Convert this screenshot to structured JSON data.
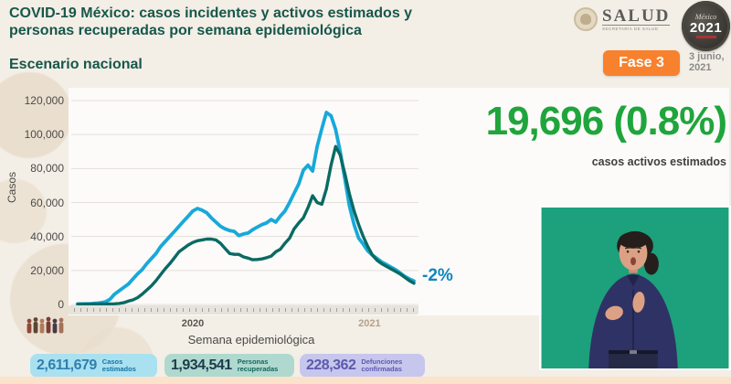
{
  "colors": {
    "title_green": "#17574a",
    "accent_green": "#1fa53c",
    "line_blue": "#17a9d9",
    "line_teal": "#0a6a63",
    "badge_orange": "#f8812e",
    "annotation_blue": "#0d87bd",
    "video_background": "#1da07c",
    "grid": "#e3dfda",
    "year_2020": "#5a564f",
    "year_2021": "#b3a28c"
  },
  "header": {
    "title_line1": "COVID-19 México: casos incidentes y activos estimados y",
    "title_line2": "personas recuperadas por semana epidemiológica",
    "subtitle": "Escenario nacional",
    "phase_badge": "Fase 3",
    "date_line1": "3 junio,",
    "date_line2": "2021",
    "salud_logo": {
      "title": "SALUD",
      "subtitle": "SECRETARÍA DE SALUD"
    },
    "mexico_badge": {
      "script": "México",
      "year": "2021"
    }
  },
  "kpi": {
    "value": "19,696 (0.8%)",
    "label": "casos activos estimados"
  },
  "chart_data": {
    "type": "line",
    "title": "Casos incidentes y activos estimados y personas recuperadas por semana epidemiológica",
    "xlabel": "Semana epidemiológica",
    "ylabel": "Casos",
    "ylim": [
      0,
      120000
    ],
    "grid": true,
    "legend": "none",
    "x_weeks_range": "2020 semana 1 a 2021 semana 22",
    "y_ticks": [
      {
        "value": 120000,
        "label": "120,000"
      },
      {
        "value": 100000,
        "label": "100,000"
      },
      {
        "value": 80000,
        "label": "80,000"
      },
      {
        "value": 60000,
        "label": "60,000"
      },
      {
        "value": 40000,
        "label": "40,000"
      },
      {
        "value": 20000,
        "label": "20,000"
      },
      {
        "value": 0,
        "label": "0"
      }
    ],
    "x_ticks": [
      {
        "label": "2020",
        "pos": 0.355,
        "color": "#5a564f"
      },
      {
        "label": "2021",
        "pos": 0.86,
        "color": "#b3a28c"
      }
    ],
    "series": [
      {
        "name": "Casos incidentes estimados",
        "color": "#17a9d9",
        "values": [
          300,
          300,
          400,
          500,
          700,
          1000,
          1500,
          3000,
          6000,
          8000,
          10000,
          12000,
          15000,
          18000,
          20500,
          24000,
          27000,
          30000,
          34000,
          37000,
          40000,
          43000,
          46000,
          49000,
          52000,
          55000,
          56500,
          55500,
          54000,
          51000,
          48500,
          46000,
          44500,
          43500,
          43000,
          40500,
          41500,
          42000,
          44000,
          45500,
          47000,
          48000,
          50000,
          48500,
          52000,
          55000,
          60000,
          65500,
          71000,
          79000,
          82000,
          78500,
          93000,
          103500,
          113000,
          111000,
          103000,
          90000,
          74000,
          58000,
          47000,
          39000,
          35500,
          31500,
          29000,
          27000,
          25000,
          23500,
          22000,
          20500,
          18500,
          16500,
          15000,
          13800
        ]
      },
      {
        "name": "Personas recuperadas",
        "color": "#0a6a63",
        "values": [
          100,
          100,
          150,
          200,
          200,
          250,
          300,
          300,
          400,
          600,
          1000,
          2000,
          2700,
          4000,
          6000,
          8500,
          11000,
          14000,
          17500,
          21000,
          24000,
          27500,
          31000,
          33000,
          35000,
          36500,
          37500,
          38000,
          38500,
          38500,
          38000,
          36000,
          33000,
          30000,
          29500,
          29500,
          28000,
          27300,
          26300,
          26500,
          26800,
          27500,
          28400,
          31000,
          32500,
          36000,
          39000,
          44500,
          48000,
          51000,
          57000,
          64000,
          60000,
          59000,
          68000,
          82000,
          93000,
          88000,
          77000,
          65000,
          55000,
          47000,
          40000,
          34000,
          29000,
          26000,
          24000,
          22500,
          21000,
          19500,
          18000,
          16000,
          14000,
          12500
        ]
      }
    ],
    "end_annotation": {
      "text": "-2%",
      "color": "#0d87bd"
    }
  },
  "footer": {
    "stats": [
      {
        "value": "2,611,679",
        "label": "Casos estimados",
        "bg": "#a9e1f1",
        "value_color": "#2f7fae",
        "label_color": "#1873a2"
      },
      {
        "value": "1,934,541",
        "label": "Personas recuperadas",
        "bg": "#afd9cf",
        "value_color": "#1d3a4a",
        "label_color": "#15655b"
      },
      {
        "value": "228,362",
        "label": "Defunciones confirmadas",
        "bg": "#c7c6ed",
        "value_color": "#5c5aae",
        "label_color": "#5c5aae"
      }
    ]
  }
}
